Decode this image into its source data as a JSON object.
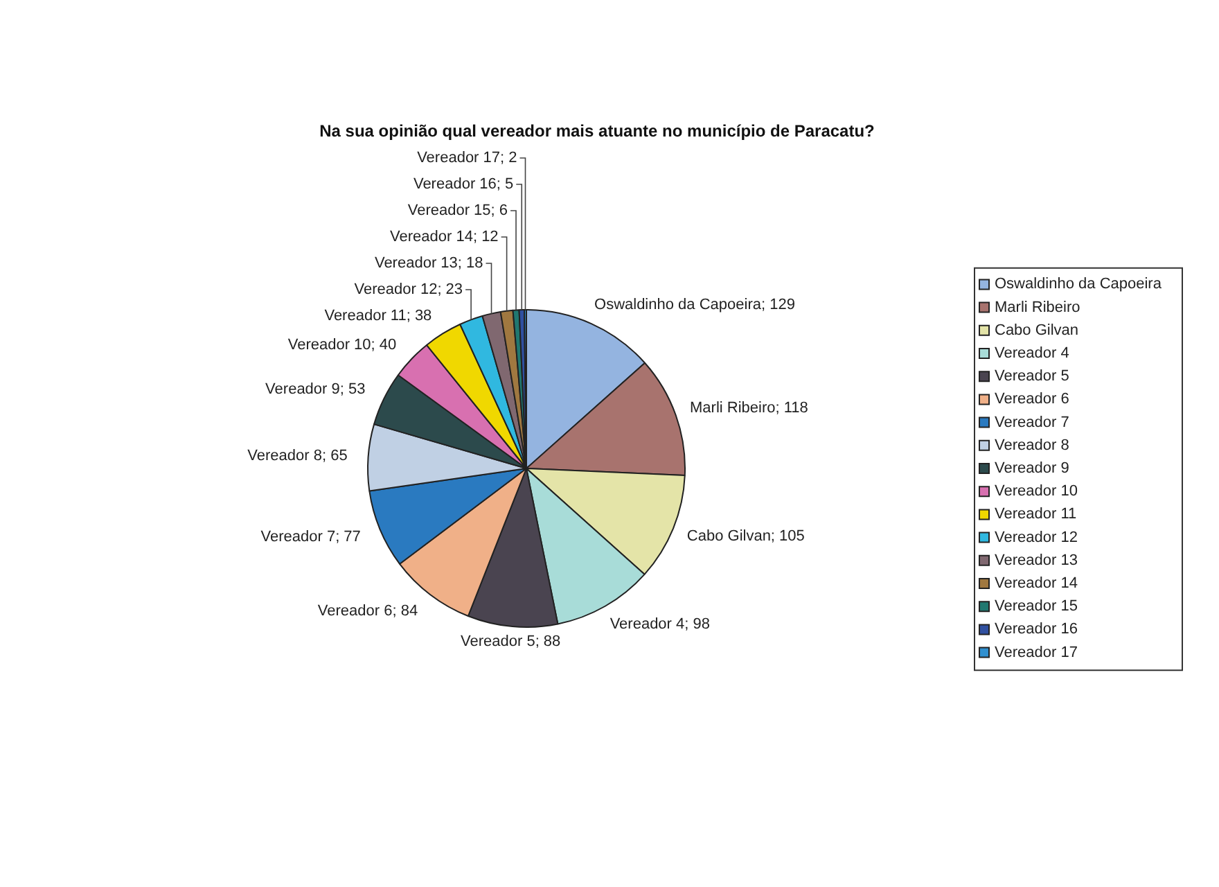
{
  "chart_data": {
    "type": "pie",
    "title": "Na sua opinião qual vereador mais atuante no município de Paracatu?",
    "categories": [
      "Oswaldinho da Capoeira",
      "Marli Ribeiro",
      "Cabo Gilvan",
      "Vereador 4",
      "Vereador 5",
      "Vereador 6",
      "Vereador 7",
      "Vereador 8",
      "Vereador 9",
      "Vereador 10",
      "Vereador 11",
      "Vereador 12",
      "Vereador 13",
      "Vereador 14",
      "Vereador 15",
      "Vereador 16",
      "Vereador 17"
    ],
    "values": [
      129,
      118,
      105,
      98,
      88,
      84,
      77,
      65,
      53,
      40,
      38,
      23,
      18,
      12,
      6,
      5,
      2
    ],
    "value_labels": [
      "Oswaldinho da Capoeira; 129",
      "Marli Ribeiro; 118",
      "Cabo Gilvan; 105",
      "Vereador 4; 98",
      "Vereador 5; 88",
      "Vereador 6; 84",
      "Vereador 7; 77",
      "Vereador 8; 65",
      "Vereador 9; 53",
      "Vereador 10; 40",
      "Vereador 11; 38",
      "Vereador 12; 23",
      "Vereador 13; 18",
      "Vereador 14; 12",
      "Vereador 15; 6",
      "Vereador 16; 5",
      "Vereador 17; 2"
    ],
    "colors": [
      "#94b4e0",
      "#a8736e",
      "#e4e4a8",
      "#a8dcd8",
      "#4a4450",
      "#f0b088",
      "#2a7ac0",
      "#c0d0e4",
      "#2c4a4c",
      "#d870b0",
      "#f0d800",
      "#30b8e0",
      "#806870",
      "#a07840",
      "#207870",
      "#3050a0",
      "#3090d0"
    ],
    "legend": "right"
  }
}
